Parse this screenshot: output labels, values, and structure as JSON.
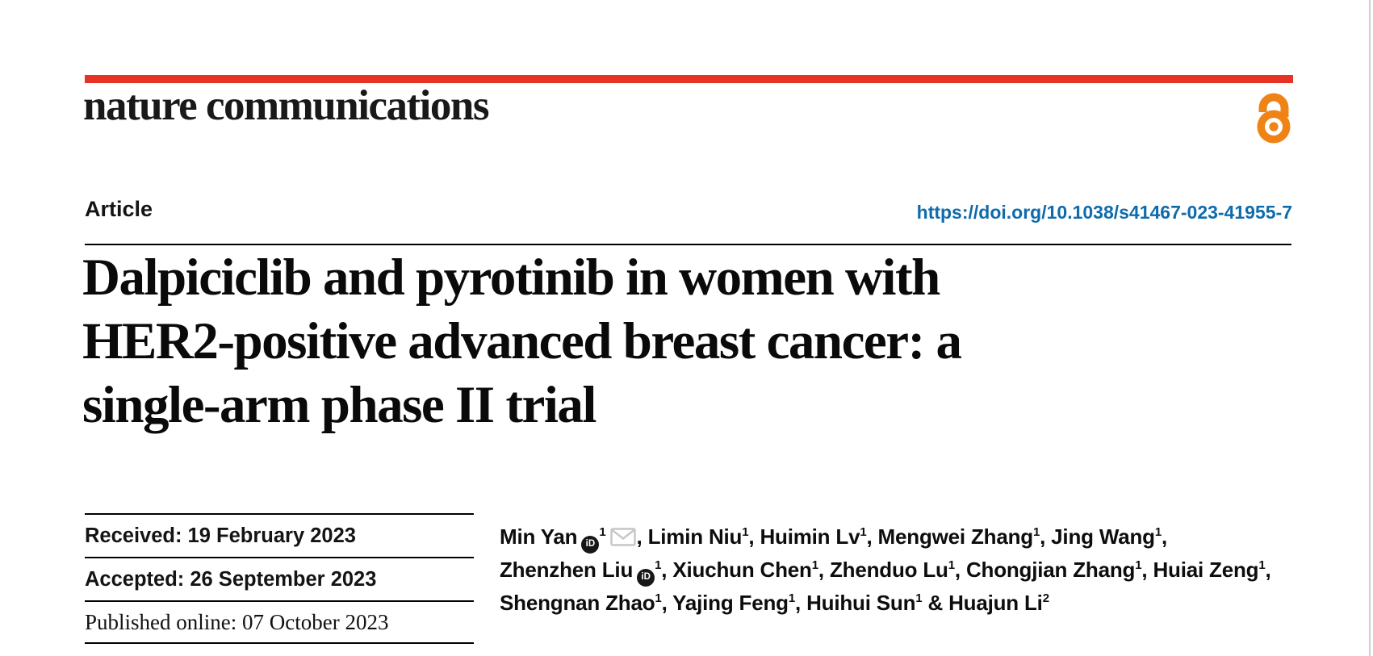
{
  "masthead": {
    "journal_name": "nature communications",
    "brand_bar_color": "#e63323",
    "open_access": {
      "icon": "open-access-lock-icon",
      "color": "#ef8315"
    }
  },
  "article_header": {
    "type_label": "Article",
    "doi": "https://doi.org/10.1038/s41467-023-41955-7",
    "doi_color": "#0e6bac"
  },
  "title": {
    "lines": [
      "Dalpiciclib and pyrotinib in women with",
      "HER2-positive advanced breast cancer: a",
      "single-arm phase II trial"
    ]
  },
  "dates": {
    "rows": [
      "Received: 19 February 2023",
      "Accepted: 26 September 2023",
      "Published online: 07 October 2023"
    ]
  },
  "authors": {
    "orcid_icon_label": "iD",
    "lines": [
      [
        {
          "name": "Min Yan",
          "orcid": true,
          "sup": "1",
          "email": true,
          "tail": ", "
        },
        {
          "name": "Limin Niu",
          "sup": "1",
          "tail": ", "
        },
        {
          "name": "Huimin Lv",
          "sup": "1",
          "tail": ", "
        },
        {
          "name": "Mengwei Zhang",
          "sup": "1",
          "tail": ", "
        },
        {
          "name": "Jing Wang",
          "sup": "1",
          "tail": ","
        }
      ],
      [
        {
          "name": "Zhenzhen Liu",
          "orcid": true,
          "sup": "1",
          "tail": ", "
        },
        {
          "name": "Xiuchun Chen",
          "sup": "1",
          "tail": ", "
        },
        {
          "name": "Zhenduo Lu",
          "sup": "1",
          "tail": ", "
        },
        {
          "name": "Chongjian Zhang",
          "sup": "1",
          "tail": ", "
        },
        {
          "name": "Huiai Zeng",
          "sup": "1",
          "tail": ","
        }
      ],
      [
        {
          "name": "Shengnan Zhao",
          "sup": "1",
          "tail": ", "
        },
        {
          "name": "Yajing Feng",
          "sup": "1",
          "tail": ", "
        },
        {
          "name": "Huihui Sun",
          "sup": "1",
          "tail": " & "
        },
        {
          "name": "Huajun Li",
          "sup": "2",
          "tail": ""
        }
      ]
    ]
  }
}
